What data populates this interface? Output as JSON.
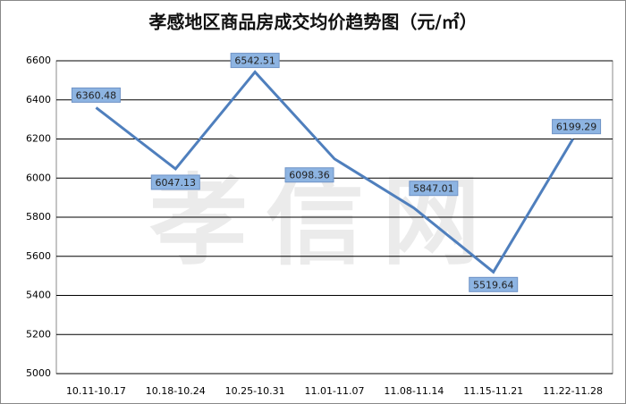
{
  "chart_data": {
    "type": "line",
    "title": "孝感地区商品房成交均价趋势图（元/㎡）",
    "watermark": "孝信网",
    "categories": [
      "10.11-10.17",
      "10.18-10.24",
      "10.25-10.31",
      "11.01-11.07",
      "11.08-11.14",
      "11.15-11.21",
      "11.22-11.28"
    ],
    "series": [
      {
        "color": "#4f7fbd",
        "values": [
          6360.48,
          6047.13,
          6542.51,
          6098.36,
          5847.01,
          5519.64,
          6199.29
        ]
      }
    ],
    "ylim": [
      5000,
      6600
    ],
    "yticks": [
      5000,
      5200,
      5400,
      5600,
      5800,
      6000,
      6200,
      6400,
      6600
    ],
    "grid": true
  }
}
